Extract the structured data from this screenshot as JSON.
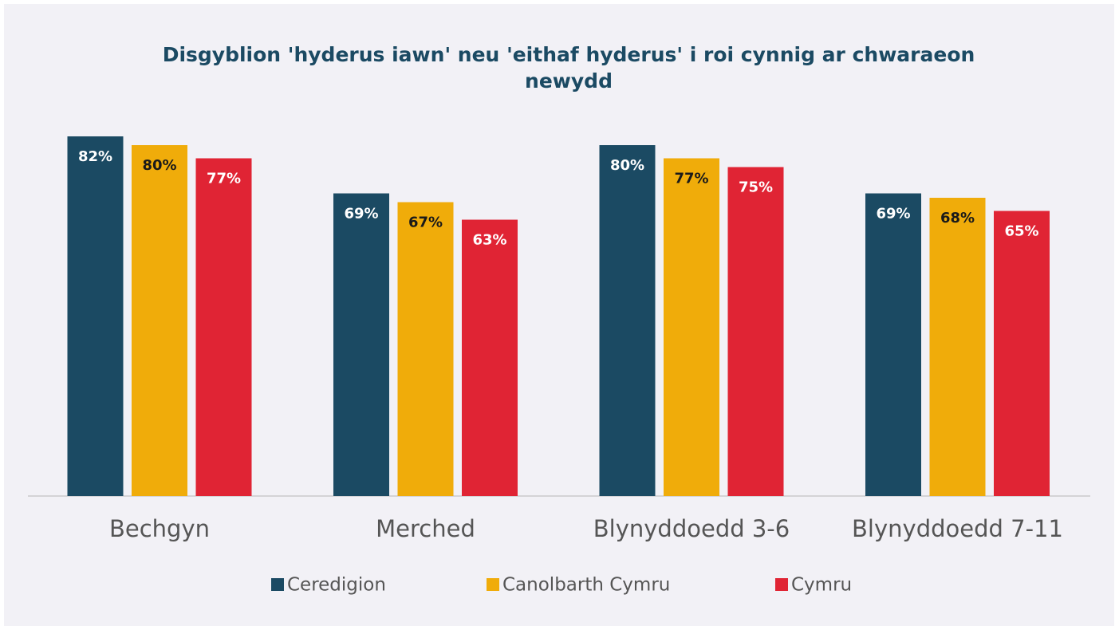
{
  "chart_data": {
    "type": "bar",
    "title": "Disgyblion 'hyderus iawn' neu 'eithaf hyderus' i roi cynnig ar chwaraeon newydd",
    "categories": [
      "Bechgyn",
      "Merched",
      "Blynyddoedd 3-6",
      "Blynyddoedd 7-11"
    ],
    "series": [
      {
        "name": "Ceredigion",
        "color": "#1b4a63",
        "values": [
          82,
          69,
          80,
          69
        ],
        "value_labels": [
          "82%",
          "69%",
          "80%",
          "69%"
        ]
      },
      {
        "name": "Canolbarth Cymru",
        "color": "#f0ac0a",
        "values": [
          80,
          67,
          77,
          68
        ],
        "value_labels": [
          "80%",
          "67%",
          "77%",
          "68%"
        ]
      },
      {
        "name": "Cymru",
        "color": "#e02434",
        "values": [
          77,
          63,
          75,
          65
        ],
        "value_labels": [
          "77%",
          "63%",
          "75%",
          "65%"
        ]
      }
    ],
    "legend": "bottom"
  }
}
